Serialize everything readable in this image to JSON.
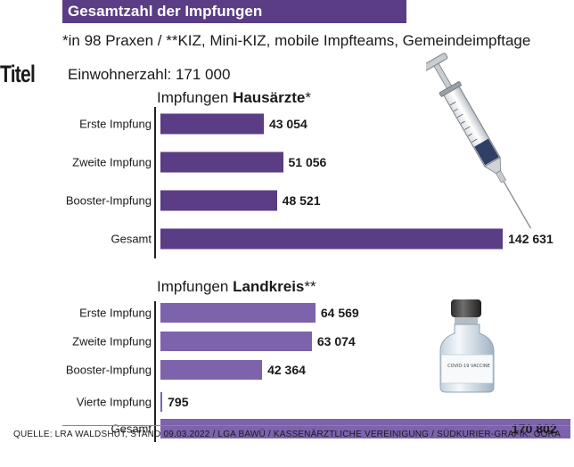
{
  "header": {
    "title": "Gesamtzahl der Impfungen",
    "subtitle": "*in 98 Praxen / **KIZ, Mini-KIZ, mobile Impfteams, Gemeindeimpftage",
    "side_tag": "Titel",
    "population": "Einwohnerzahl: 171 000"
  },
  "source": "QUELLE: LRA WALDSHUT, STAND 09.03.2022 / LGA BAWÜ / KASSENÄRZTLICHE VEREINIGUNG / SÜDKURIER-GRAFIK: GORA",
  "vial_text": "COVID-19 VACCINE",
  "colors": {
    "bar_primary": "#5a3d85",
    "bar_secondary": "#7d62ac",
    "title_bg": "#5a3d85"
  },
  "chart_data": [
    {
      "type": "bar",
      "orientation": "horizontal",
      "title_plain": "Impfungen ",
      "title_bold": "Hausärzte",
      "title_suffix": "*",
      "categories": [
        "Erste Impfung",
        "Zweite Impfung",
        "Booster-Impfung",
        "Gesamt"
      ],
      "values": [
        43054,
        51056,
        48521,
        142631
      ],
      "value_labels": [
        "43 054",
        "51 056",
        "48 521",
        "142 631"
      ],
      "color": "#5a3d85"
    },
    {
      "type": "bar",
      "orientation": "horizontal",
      "title_plain": "Impfungen ",
      "title_bold": "Landkreis",
      "title_suffix": "**",
      "categories": [
        "Erste Impfung",
        "Zweite Impfung",
        "Booster-Impfung",
        "Vierte Impfung",
        "Gesamt"
      ],
      "values": [
        64569,
        63074,
        42364,
        795,
        170802
      ],
      "value_labels": [
        "64 569",
        "63 074",
        "42 364",
        "795",
        "170 802"
      ],
      "color": "#7d62ac"
    }
  ]
}
